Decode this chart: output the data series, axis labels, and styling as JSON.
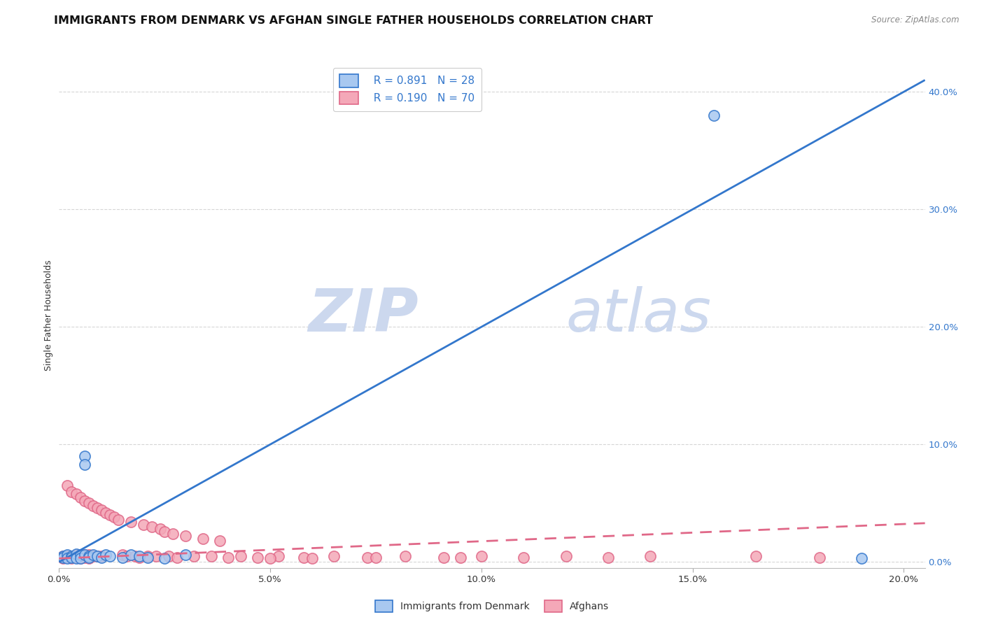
{
  "title": "IMMIGRANTS FROM DENMARK VS AFGHAN SINGLE FATHER HOUSEHOLDS CORRELATION CHART",
  "source": "Source: ZipAtlas.com",
  "ylabel": "Single Father Households",
  "xlim": [
    0.0,
    0.205
  ],
  "ylim": [
    -0.005,
    0.425
  ],
  "legend_r1": "R = 0.891",
  "legend_n1": "N = 28",
  "legend_r2": "R = 0.190",
  "legend_n2": "N = 70",
  "color_denmark": "#a8c8f0",
  "color_afghan": "#f4a8b8",
  "color_denmark_line": "#3377cc",
  "color_afghan_line": "#e06888",
  "watermark_zip": "ZIP",
  "watermark_atlas": "atlas",
  "denmark_scatter_x": [
    0.001,
    0.001,
    0.002,
    0.002,
    0.003,
    0.003,
    0.004,
    0.004,
    0.005,
    0.005,
    0.006,
    0.006,
    0.006,
    0.007,
    0.007,
    0.008,
    0.009,
    0.01,
    0.011,
    0.012,
    0.015,
    0.017,
    0.019,
    0.021,
    0.025,
    0.03,
    0.155,
    0.19
  ],
  "denmark_scatter_y": [
    0.005,
    0.004,
    0.006,
    0.003,
    0.005,
    0.004,
    0.007,
    0.003,
    0.006,
    0.003,
    0.09,
    0.083,
    0.006,
    0.005,
    0.004,
    0.006,
    0.005,
    0.004,
    0.006,
    0.005,
    0.004,
    0.006,
    0.005,
    0.004,
    0.003,
    0.006,
    0.38,
    0.003
  ],
  "afghan_scatter_x": [
    0.001,
    0.001,
    0.001,
    0.002,
    0.002,
    0.002,
    0.003,
    0.003,
    0.003,
    0.004,
    0.004,
    0.004,
    0.005,
    0.005,
    0.005,
    0.006,
    0.006,
    0.006,
    0.007,
    0.007,
    0.007,
    0.008,
    0.008,
    0.009,
    0.009,
    0.01,
    0.01,
    0.011,
    0.012,
    0.013,
    0.014,
    0.015,
    0.016,
    0.017,
    0.018,
    0.019,
    0.02,
    0.021,
    0.022,
    0.023,
    0.024,
    0.025,
    0.026,
    0.027,
    0.028,
    0.03,
    0.032,
    0.034,
    0.036,
    0.038,
    0.04,
    0.043,
    0.047,
    0.052,
    0.058,
    0.065,
    0.073,
    0.082,
    0.091,
    0.1,
    0.11,
    0.12,
    0.13,
    0.095,
    0.14,
    0.06,
    0.075,
    0.05,
    0.165,
    0.18
  ],
  "afghan_scatter_y": [
    0.005,
    0.004,
    0.003,
    0.065,
    0.005,
    0.004,
    0.06,
    0.005,
    0.003,
    0.058,
    0.006,
    0.004,
    0.055,
    0.006,
    0.003,
    0.052,
    0.006,
    0.004,
    0.05,
    0.006,
    0.003,
    0.048,
    0.005,
    0.046,
    0.005,
    0.044,
    0.005,
    0.042,
    0.04,
    0.038,
    0.036,
    0.006,
    0.005,
    0.034,
    0.005,
    0.004,
    0.032,
    0.005,
    0.03,
    0.005,
    0.028,
    0.026,
    0.005,
    0.024,
    0.004,
    0.022,
    0.005,
    0.02,
    0.005,
    0.018,
    0.004,
    0.005,
    0.004,
    0.005,
    0.004,
    0.005,
    0.004,
    0.005,
    0.004,
    0.005,
    0.004,
    0.005,
    0.004,
    0.004,
    0.005,
    0.003,
    0.004,
    0.003,
    0.005,
    0.004
  ],
  "denmark_line_x": [
    0.0,
    0.205
  ],
  "denmark_line_y": [
    0.0,
    0.41
  ],
  "afghan_line_x": [
    0.0,
    0.205
  ],
  "afghan_line_y": [
    0.003,
    0.033
  ],
  "background_color": "#ffffff",
  "grid_color": "#cccccc",
  "title_fontsize": 11.5,
  "axis_label_fontsize": 9,
  "tick_fontsize": 9.5,
  "legend_label1": "Immigrants from Denmark",
  "legend_label2": "Afghans"
}
